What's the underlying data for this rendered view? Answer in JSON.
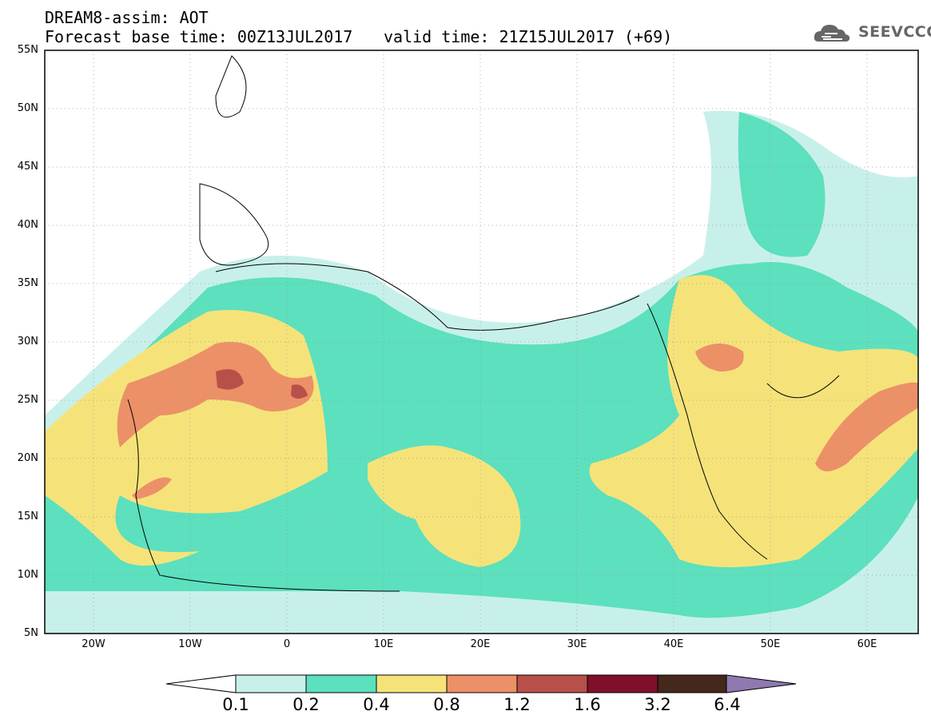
{
  "title_line1": "DREAM8-assim: AOT",
  "title_line2": "Forecast base time: 00Z13JUL2017",
  "title_valid": "valid time: 21Z15JUL2017 (+69)",
  "logo_text": "SEEVCCC",
  "map": {
    "lat_range": [
      5,
      55
    ],
    "lon_range": [
      -25,
      65
    ],
    "lat_labels": [
      "55N",
      "50N",
      "45N",
      "40N",
      "35N",
      "30N",
      "25N",
      "20N",
      "15N",
      "10N",
      "5N"
    ],
    "lon_labels": [
      "20W",
      "10W",
      "0",
      "10E",
      "20E",
      "30E",
      "40E",
      "50E",
      "60E"
    ]
  },
  "colorbar": {
    "colors": [
      "#c8f0ea",
      "#5ce0be",
      "#f5e37a",
      "#ec9068",
      "#b8504a",
      "#80102a",
      "#44281c",
      "#9078b0"
    ],
    "labels": [
      "0.1",
      "0.2",
      "0.4",
      "0.8",
      "1.2",
      "1.6",
      "3.2",
      "6.4"
    ]
  }
}
